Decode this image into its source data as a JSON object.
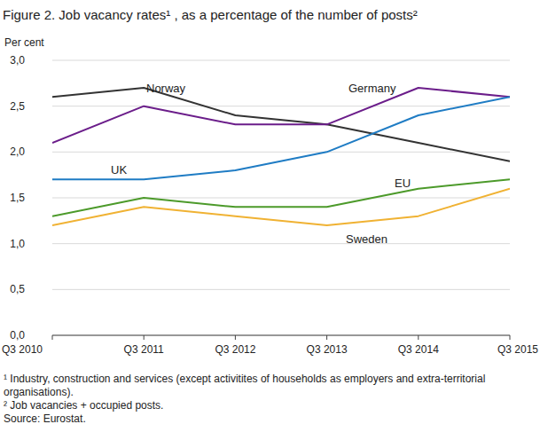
{
  "chart_data": {
    "type": "line",
    "title": "Figure 2. Job vacancy rates¹ , as a percentage of the number of posts²",
    "y_label": "Per cent",
    "categories": [
      "Q3 2010",
      "Q3 2011",
      "Q3 2012",
      "Q3 2013",
      "Q3 2014",
      "Q3 2015"
    ],
    "series": [
      {
        "name": "Norway",
        "color": "#333333",
        "values": [
          2.6,
          2.7,
          2.4,
          2.3,
          2.1,
          1.9
        ]
      },
      {
        "name": "Germany",
        "color": "#6b1d8a",
        "values": [
          2.1,
          2.5,
          2.3,
          2.3,
          2.7,
          2.6
        ]
      },
      {
        "name": "UK",
        "color": "#1f7cc4",
        "values": [
          1.7,
          1.7,
          1.8,
          2.0,
          2.4,
          2.6
        ]
      },
      {
        "name": "EU",
        "color": "#4c9a2a",
        "values": [
          1.3,
          1.5,
          1.4,
          1.4,
          1.6,
          1.7
        ]
      },
      {
        "name": "Sweden",
        "color": "#f0b233",
        "values": [
          1.2,
          1.4,
          1.3,
          1.2,
          1.3,
          1.6
        ]
      }
    ],
    "ylim": [
      0,
      3
    ],
    "yticks": [
      {
        "value": 0,
        "label": "0,0"
      },
      {
        "value": 0.5,
        "label": "0,5"
      },
      {
        "value": 1,
        "label": "1,0"
      },
      {
        "value": 1.5,
        "label": "1,5"
      },
      {
        "value": 2,
        "label": "2,0"
      },
      {
        "value": 2.5,
        "label": "2,5"
      },
      {
        "value": 3,
        "label": "3,0"
      }
    ],
    "grid": true,
    "notes": [
      "¹ Industry, construction and services (except activitites of households as employers and extra-territorial organisations).",
      "² Job vacancies + occupied posts.",
      "Source: Eurostat."
    ]
  }
}
